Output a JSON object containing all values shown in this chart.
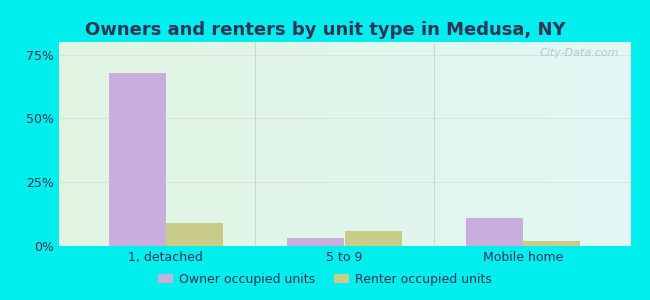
{
  "title": "Owners and renters by unit type in Medusa, NY",
  "categories": [
    "1, detached",
    "5 to 9",
    "Mobile home"
  ],
  "owner_values": [
    68.0,
    3.0,
    11.0
  ],
  "renter_values": [
    9.0,
    6.0,
    2.0
  ],
  "owner_color": "#c9aedd",
  "renter_color": "#c8cc88",
  "yticks": [
    0,
    25,
    50,
    75
  ],
  "ytick_labels": [
    "0%",
    "25%",
    "50%",
    "75%"
  ],
  "ylim": [
    0,
    80
  ],
  "bar_width": 0.32,
  "outer_background": "#00eeee",
  "legend_owner": "Owner occupied units",
  "legend_renter": "Renter occupied units",
  "watermark": "City-Data.com",
  "title_fontsize": 13,
  "tick_fontsize": 9,
  "legend_fontsize": 9,
  "text_color": "#333355",
  "bg_color_topleft": [
    0.88,
    0.96,
    0.88
  ],
  "bg_color_topright": [
    0.88,
    0.97,
    0.96
  ],
  "bg_color_bottomleft": [
    0.88,
    0.96,
    0.88
  ],
  "bg_color_bottomright": [
    0.88,
    0.97,
    0.96
  ]
}
